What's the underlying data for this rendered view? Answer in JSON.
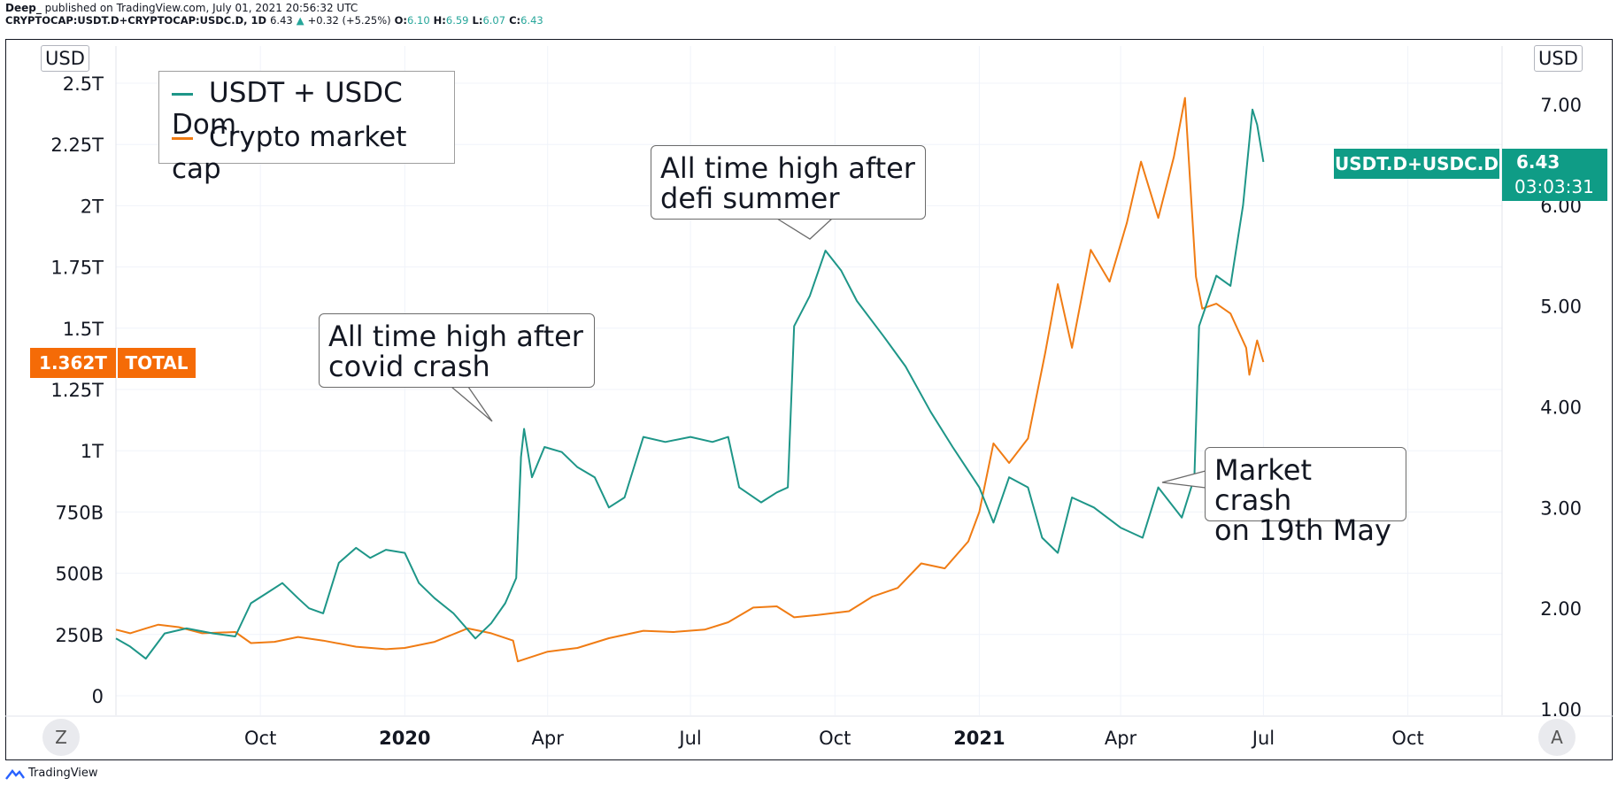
{
  "header": {
    "author": "Deep_",
    "published": "published on TradingView.com, July 01, 2021 20:56:32 UTC",
    "symbol": "CRYPTOCAP:USDT.D+CRYPTOCAP:USDC.D, 1D",
    "last": "6.43",
    "change": "+0.32 (+5.25%)",
    "o_label": "O:",
    "o": "6.10",
    "h_label": "H:",
    "h": "6.59",
    "l_label": "L:",
    "l": "6.07",
    "c_label": "C:",
    "c": "6.43"
  },
  "axes": {
    "left_unit": "USD",
    "right_unit": "USD",
    "left_scale_button": "Z",
    "right_scale_button": "A"
  },
  "tags": {
    "right_symbol": "USDT.D+USDC.D",
    "right_value": "6.43",
    "right_countdown": "03:03:31",
    "left_value": "1.362T",
    "left_symbol": "TOTAL"
  },
  "callouts": {
    "covid": "All time high after\ncovid crash",
    "defi": "All time high after\ndefi summer",
    "crash": "Market crash\non 19th May"
  },
  "footer": {
    "brand": "TradingView"
  },
  "colors": {
    "dominance": "#1e9688",
    "market_cap": "#f07c14",
    "grid": "#f0f3fa"
  },
  "chart_data": {
    "type": "line",
    "legend_placement": "top-left",
    "x_tick_labels": [
      "Oct",
      "2020",
      "Apr",
      "Jul",
      "Oct",
      "2021",
      "Apr",
      "Jul",
      "Oct"
    ],
    "x_tick_dates": [
      "2019-10-01",
      "2020-01-01",
      "2020-04-01",
      "2020-07-01",
      "2020-10-01",
      "2021-01-01",
      "2021-04-01",
      "2021-07-01",
      "2021-10-01"
    ],
    "left_axis": {
      "ticks": [
        "0",
        "250B",
        "500B",
        "750B",
        "1T",
        "1.25T",
        "1.5T",
        "1.75T",
        "2T",
        "2.25T",
        "2.5T"
      ],
      "ylim_billions": [
        0,
        2500
      ]
    },
    "right_axis": {
      "ticks": [
        "1.00",
        "2.00",
        "3.00",
        "4.00",
        "5.00",
        "6.00",
        "7.00"
      ],
      "ylim": [
        1,
        7
      ]
    },
    "series": [
      {
        "name": "USDT + USDC Dom",
        "axis": "right",
        "points": [
          [
            "2019-07-01",
            1.7
          ],
          [
            "2019-07-10",
            1.62
          ],
          [
            "2019-07-20",
            1.5
          ],
          [
            "2019-08-01",
            1.75
          ],
          [
            "2019-08-15",
            1.8
          ],
          [
            "2019-09-01",
            1.75
          ],
          [
            "2019-09-15",
            1.72
          ],
          [
            "2019-09-25",
            2.05
          ],
          [
            "2019-10-05",
            2.15
          ],
          [
            "2019-10-15",
            2.25
          ],
          [
            "2019-10-25",
            2.1
          ],
          [
            "2019-11-01",
            2.0
          ],
          [
            "2019-11-10",
            1.95
          ],
          [
            "2019-11-20",
            2.45
          ],
          [
            "2019-12-01",
            2.6
          ],
          [
            "2019-12-10",
            2.5
          ],
          [
            "2019-12-20",
            2.58
          ],
          [
            "2020-01-01",
            2.55
          ],
          [
            "2020-01-10",
            2.25
          ],
          [
            "2020-01-20",
            2.1
          ],
          [
            "2020-02-01",
            1.95
          ],
          [
            "2020-02-15",
            1.7
          ],
          [
            "2020-02-25",
            1.85
          ],
          [
            "2020-03-05",
            2.05
          ],
          [
            "2020-03-12",
            2.3
          ],
          [
            "2020-03-15",
            3.5
          ],
          [
            "2020-03-17",
            3.78
          ],
          [
            "2020-03-22",
            3.3
          ],
          [
            "2020-03-30",
            3.6
          ],
          [
            "2020-04-10",
            3.55
          ],
          [
            "2020-04-20",
            3.4
          ],
          [
            "2020-05-01",
            3.3
          ],
          [
            "2020-05-10",
            3.0
          ],
          [
            "2020-05-20",
            3.1
          ],
          [
            "2020-06-01",
            3.7
          ],
          [
            "2020-06-15",
            3.65
          ],
          [
            "2020-07-01",
            3.7
          ],
          [
            "2020-07-15",
            3.65
          ],
          [
            "2020-07-25",
            3.7
          ],
          [
            "2020-08-01",
            3.2
          ],
          [
            "2020-08-15",
            3.05
          ],
          [
            "2020-08-25",
            3.15
          ],
          [
            "2020-09-01",
            3.2
          ],
          [
            "2020-09-05",
            4.8
          ],
          [
            "2020-09-15",
            5.1
          ],
          [
            "2020-09-25",
            5.55
          ],
          [
            "2020-10-05",
            5.35
          ],
          [
            "2020-10-15",
            5.05
          ],
          [
            "2020-11-01",
            4.7
          ],
          [
            "2020-11-15",
            4.4
          ],
          [
            "2020-12-01",
            3.95
          ],
          [
            "2020-12-15",
            3.6
          ],
          [
            "2021-01-01",
            3.2
          ],
          [
            "2021-01-10",
            2.85
          ],
          [
            "2021-01-20",
            3.3
          ],
          [
            "2021-02-01",
            3.2
          ],
          [
            "2021-02-10",
            2.7
          ],
          [
            "2021-02-20",
            2.55
          ],
          [
            "2021-03-01",
            3.1
          ],
          [
            "2021-03-15",
            3.0
          ],
          [
            "2021-04-01",
            2.8
          ],
          [
            "2021-04-15",
            2.7
          ],
          [
            "2021-04-25",
            3.2
          ],
          [
            "2021-05-10",
            2.9
          ],
          [
            "2021-05-18",
            3.3
          ],
          [
            "2021-05-21",
            4.8
          ],
          [
            "2021-06-01",
            5.3
          ],
          [
            "2021-06-10",
            5.2
          ],
          [
            "2021-06-18",
            6.0
          ],
          [
            "2021-06-24",
            6.95
          ],
          [
            "2021-06-27",
            6.8
          ],
          [
            "2021-07-01",
            6.43
          ]
        ]
      },
      {
        "name": "Crypto market cap",
        "axis": "left",
        "points": [
          [
            "2019-07-01",
            270
          ],
          [
            "2019-07-10",
            255
          ],
          [
            "2019-07-20",
            275
          ],
          [
            "2019-07-28",
            290
          ],
          [
            "2019-08-10",
            280
          ],
          [
            "2019-08-25",
            255
          ],
          [
            "2019-09-15",
            260
          ],
          [
            "2019-09-25",
            215
          ],
          [
            "2019-10-10",
            220
          ],
          [
            "2019-10-25",
            240
          ],
          [
            "2019-11-10",
            225
          ],
          [
            "2019-12-01",
            200
          ],
          [
            "2019-12-20",
            190
          ],
          [
            "2020-01-01",
            195
          ],
          [
            "2020-01-20",
            220
          ],
          [
            "2020-02-10",
            275
          ],
          [
            "2020-02-25",
            255
          ],
          [
            "2020-03-10",
            225
          ],
          [
            "2020-03-13",
            140
          ],
          [
            "2020-04-01",
            180
          ],
          [
            "2020-04-20",
            195
          ],
          [
            "2020-05-10",
            235
          ],
          [
            "2020-06-01",
            265
          ],
          [
            "2020-06-20",
            260
          ],
          [
            "2020-07-10",
            270
          ],
          [
            "2020-07-25",
            300
          ],
          [
            "2020-08-10",
            360
          ],
          [
            "2020-08-25",
            365
          ],
          [
            "2020-09-05",
            320
          ],
          [
            "2020-09-20",
            330
          ],
          [
            "2020-10-10",
            345
          ],
          [
            "2020-10-25",
            405
          ],
          [
            "2020-11-10",
            440
          ],
          [
            "2020-11-25",
            540
          ],
          [
            "2020-12-10",
            520
          ],
          [
            "2020-12-25",
            630
          ],
          [
            "2021-01-01",
            750
          ],
          [
            "2021-01-10",
            1030
          ],
          [
            "2021-01-20",
            950
          ],
          [
            "2021-02-01",
            1050
          ],
          [
            "2021-02-12",
            1400
          ],
          [
            "2021-02-20",
            1680
          ],
          [
            "2021-03-01",
            1420
          ],
          [
            "2021-03-13",
            1820
          ],
          [
            "2021-03-25",
            1690
          ],
          [
            "2021-04-05",
            1930
          ],
          [
            "2021-04-14",
            2180
          ],
          [
            "2021-04-25",
            1950
          ],
          [
            "2021-05-05",
            2200
          ],
          [
            "2021-05-12",
            2440
          ],
          [
            "2021-05-19",
            1710
          ],
          [
            "2021-05-23",
            1580
          ],
          [
            "2021-06-01",
            1600
          ],
          [
            "2021-06-10",
            1560
          ],
          [
            "2021-06-20",
            1420
          ],
          [
            "2021-06-22",
            1310
          ],
          [
            "2021-06-27",
            1450
          ],
          [
            "2021-07-01",
            1362
          ]
        ]
      }
    ]
  }
}
